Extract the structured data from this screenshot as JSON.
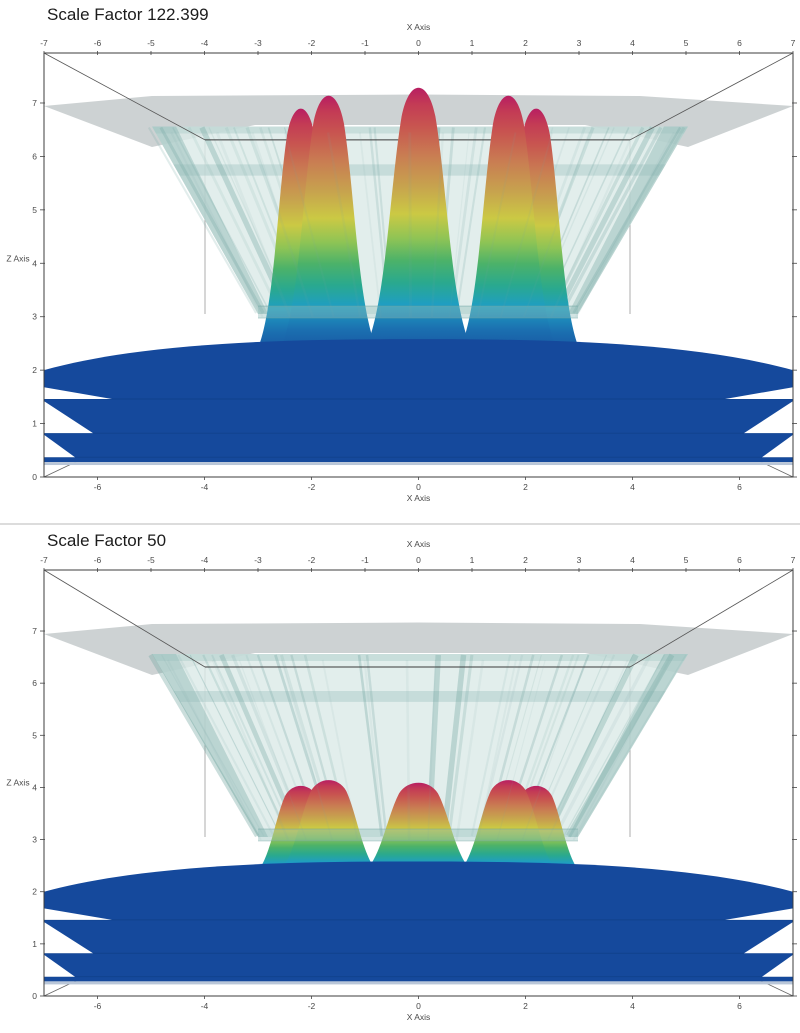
{
  "figure": {
    "background": "#ffffff",
    "divider_color": "#dcdcdc"
  },
  "chart_data": [
    {
      "type": "surface3d",
      "title": "Scale Factor 122.399",
      "scale_factor": 122.399,
      "view": "front-elevation 3D box, orthographic-like perspective",
      "x_axis": {
        "label": "X Axis",
        "range": [
          -7,
          7
        ],
        "top_ticks": [
          -7,
          -6,
          -5,
          -4,
          -3,
          -2,
          -1,
          0,
          1,
          2,
          3,
          4,
          5,
          6,
          7
        ],
        "bottom_ticks": [
          -6,
          -4,
          -2,
          0,
          2,
          4,
          6
        ]
      },
      "z_axis": {
        "label": "Z Axis",
        "range": [
          0,
          7
        ],
        "ticks": [
          0,
          1,
          2,
          3,
          4,
          5,
          6,
          7
        ]
      },
      "clip_plane_z": 7,
      "curtain": {
        "top_z": 6.56,
        "rim_z": 3.05
      },
      "peaks": [
        {
          "x": -2.2,
          "height": 6.87
        },
        {
          "x": -1.68,
          "height": 7.11
        },
        {
          "x": 0,
          "height": 7.26
        },
        {
          "x": 1.68,
          "height": 7.11
        },
        {
          "x": 2.2,
          "height": 6.87
        }
      ],
      "floor": {
        "level_steps": [
          [
            1.68,
            1.46
          ],
          [
            1.42,
            0.82
          ],
          [
            0.79,
            0.37
          ]
        ]
      },
      "colors": {
        "floor": "#15499c",
        "plane": "#c8cdce",
        "curtain": "#dceae8",
        "streak": "#76a8a4",
        "rim": "#8fbcb8",
        "gradient": [
          "#b81e62",
          "#c33b55",
          "#c85550",
          "#c97e52",
          "#c7a34e",
          "#cbc944",
          "#8ec455",
          "#4cb269",
          "#2aa98e",
          "#1f9ec2",
          "#1b6fb0",
          "#15499c"
        ]
      }
    },
    {
      "type": "surface3d",
      "title": "Scale Factor 50",
      "scale_factor": 50,
      "view": "front-elevation 3D box, orthographic-like perspective",
      "x_axis": {
        "label": "X Axis",
        "range": [
          -7,
          7
        ],
        "top_ticks": [
          -7,
          -6,
          -5,
          -4,
          -3,
          -2,
          -1,
          0,
          1,
          2,
          3,
          4,
          5,
          6,
          7
        ],
        "bottom_ticks": [
          -6,
          -4,
          -2,
          0,
          2,
          4,
          6
        ]
      },
      "z_axis": {
        "label": "Z Axis",
        "range": [
          0,
          7
        ],
        "ticks": [
          0,
          1,
          2,
          3,
          4,
          5,
          6,
          7
        ]
      },
      "clip_plane_z": 7,
      "curtain": {
        "top_z": 6.56,
        "rim_z": 3.05
      },
      "peaks": [
        {
          "x": -2.2,
          "height": 4.02
        },
        {
          "x": -1.68,
          "height": 4.13
        },
        {
          "x": 0,
          "height": 4.08
        },
        {
          "x": 1.68,
          "height": 4.13
        },
        {
          "x": 2.2,
          "height": 4.02
        }
      ],
      "floor": {
        "level_steps": [
          [
            1.68,
            1.46
          ],
          [
            1.42,
            0.82
          ],
          [
            0.79,
            0.37
          ]
        ]
      },
      "colors": {
        "floor": "#15499c",
        "plane": "#c8cdce",
        "curtain": "#dceae8",
        "streak": "#76a8a4",
        "rim": "#8fbcb8",
        "gradient": [
          "#b81e62",
          "#c33b55",
          "#c85550",
          "#c97e52",
          "#c7a34e",
          "#cbc944",
          "#8ec455",
          "#4cb269",
          "#2aa98e",
          "#1f9ec2",
          "#1b6fb0",
          "#15499c"
        ]
      }
    }
  ]
}
